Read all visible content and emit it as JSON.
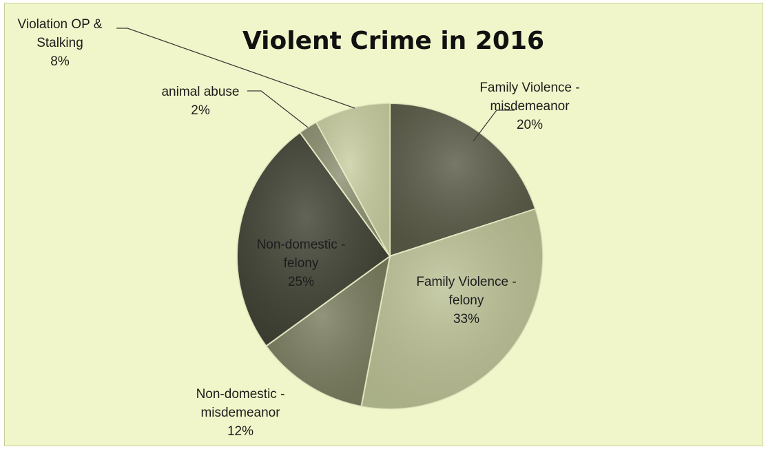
{
  "chart_data": {
    "type": "pie",
    "title": "Violent Crime in 2016",
    "slices": [
      {
        "name": "Family Violence - misdemeanor",
        "label_lines": [
          "Family Violence -",
          "misdemeanor"
        ],
        "value": 20,
        "percent_label": "20%",
        "color": "#5a5b47"
      },
      {
        "name": "Family Violence - felony",
        "label_lines": [
          "Family Violence -",
          "felony"
        ],
        "value": 33,
        "percent_label": "33%",
        "color": "#bcc296"
      },
      {
        "name": "Non-domestic - misdemeanor",
        "label_lines": [
          "Non-domestic -",
          "misdemeanor"
        ],
        "value": 12,
        "percent_label": "12%",
        "color": "#7a7d5f"
      },
      {
        "name": "Non-domestic - felony",
        "label_lines": [
          "Non-domestic -",
          "felony"
        ],
        "value": 25,
        "percent_label": "25%",
        "color": "#3f4233"
      },
      {
        "name": "animal abuse",
        "label_lines": [
          "animal abuse"
        ],
        "value": 2,
        "percent_label": "2%",
        "color": "#8e9172"
      },
      {
        "name": "Violation OP & Stalking",
        "label_lines": [
          "Violation OP &",
          "Stalking"
        ],
        "value": 8,
        "percent_label": "8%",
        "color": "#c9cfa2"
      }
    ],
    "start_angle_deg": 0,
    "direction": "clockwise",
    "legend": "none"
  },
  "colors": {
    "background": "#f0f6c9",
    "border": "#c8ce9a",
    "slice_edge": "#e9eec4",
    "leader_line": "#3a3a3a",
    "text": "#1c1c1c"
  }
}
